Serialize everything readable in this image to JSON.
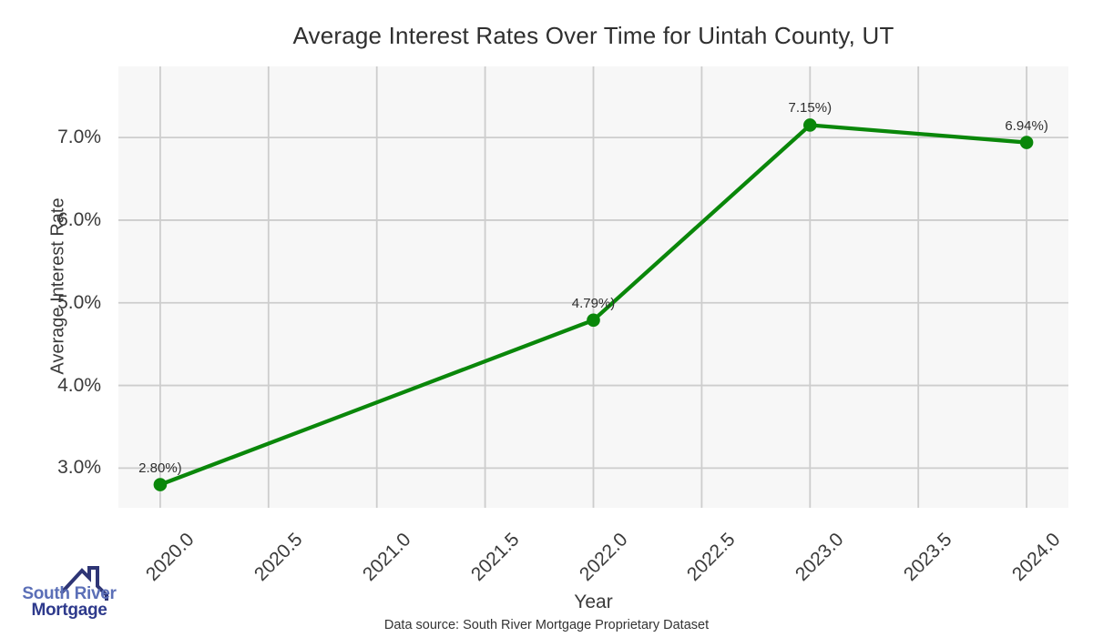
{
  "chart_data": {
    "type": "line",
    "title": "Average Interest Rates Over Time for Uintah County, UT",
    "xlabel": "Year",
    "ylabel": "Average Interest Rate",
    "x": [
      2020,
      2022,
      2023,
      2024
    ],
    "y": [
      2.8,
      4.79,
      7.15,
      6.94
    ],
    "point_labels": [
      "2.80%)",
      "4.79%)",
      "7.15%)",
      "6.94%)"
    ],
    "xticks": {
      "values": [
        2020.0,
        2020.5,
        2021.0,
        2021.5,
        2022.0,
        2022.5,
        2023.0,
        2023.5,
        2024.0
      ],
      "labels": [
        "2020.0",
        "2020.5",
        "2021.0",
        "2021.5",
        "2022.0",
        "2022.5",
        "2023.0",
        "2023.5",
        "2024.0"
      ]
    },
    "yticks": {
      "values": [
        3.0,
        4.0,
        5.0,
        6.0,
        7.0
      ],
      "labels": [
        "3.0%",
        "4.0%",
        "5.0%",
        "6.0%",
        "7.0%"
      ]
    },
    "xlim": [
      2019.807,
      2024.193
    ],
    "ylim": [
      2.52,
      7.86
    ],
    "grid": true,
    "legend": "none",
    "line_color": "#0a870a",
    "marker": "circle",
    "plot_bg": "#f7f7f7",
    "grid_color": "#cdcdcd"
  },
  "footer": {
    "text": "Data source: South River Mortgage Proprietary Dataset"
  },
  "logo": {
    "line1": "South River",
    "line2": "Mortgage",
    "color1": "#5b6fb7",
    "color2": "#2e3a8c",
    "icon_color": "#2e3575"
  }
}
